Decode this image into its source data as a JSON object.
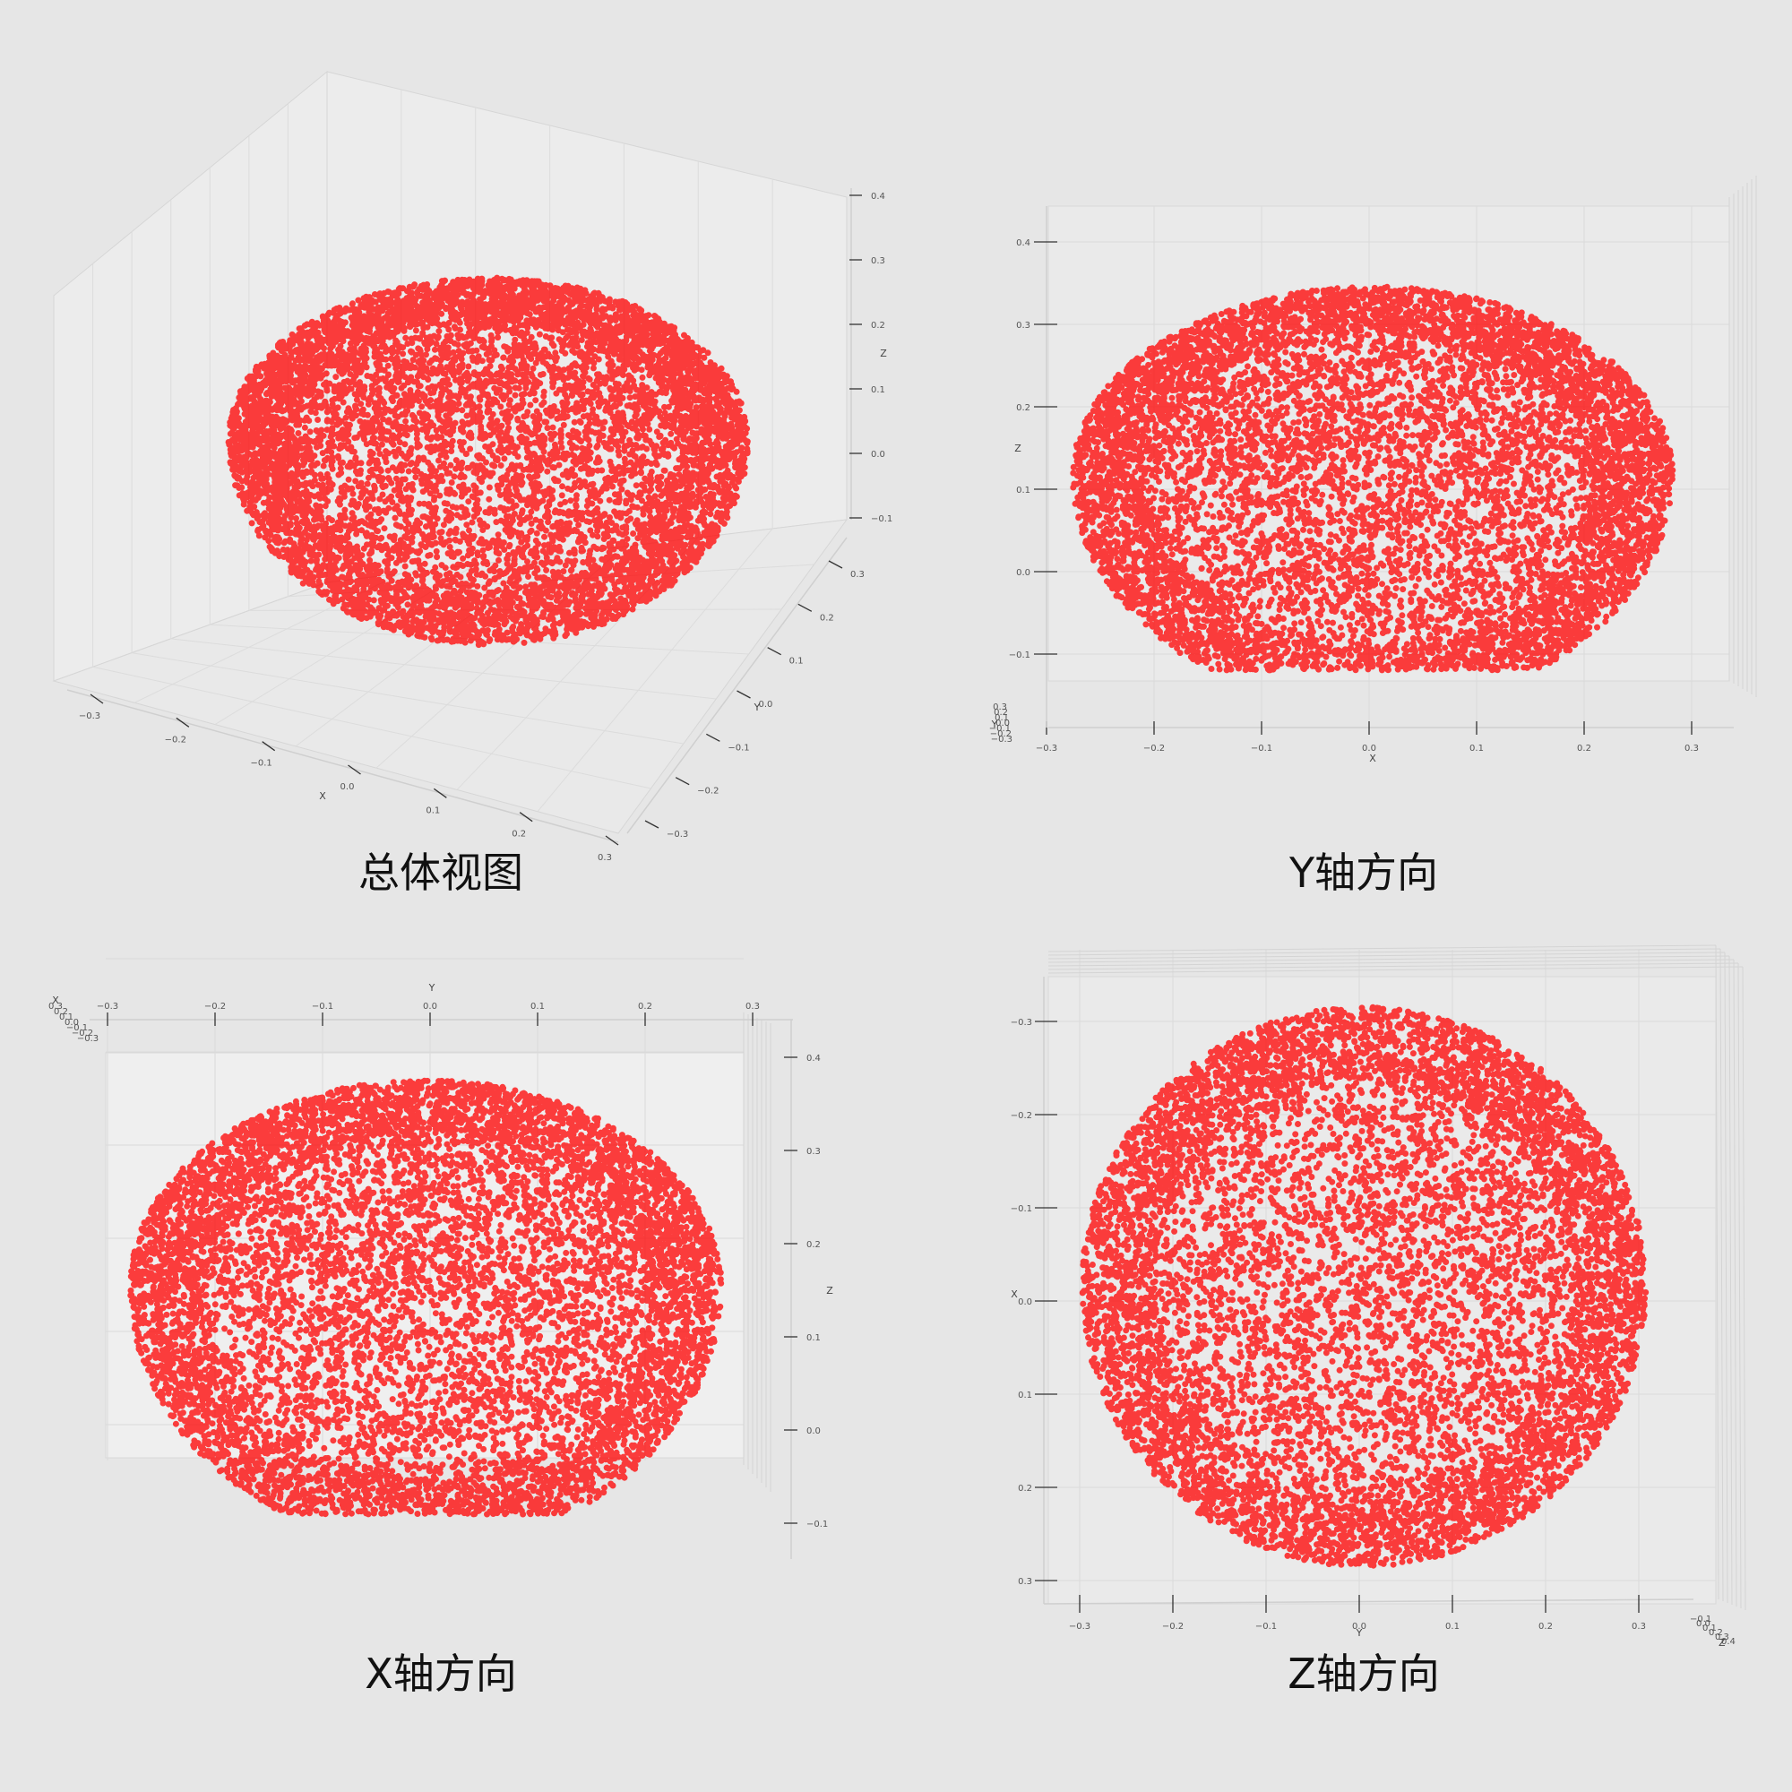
{
  "chart_data": [
    {
      "type": "scatter",
      "title": "",
      "caption": "总体视图",
      "view": "perspective",
      "marker_color": "#ff0000",
      "xlabel": "X",
      "ylabel": "Y",
      "zlabel": "Z",
      "xlim": [
        -0.33,
        0.33
      ],
      "ylim": [
        -0.33,
        0.33
      ],
      "zlim": [
        -0.12,
        0.42
      ],
      "xticks": [
        "−0.3",
        "−0.2",
        "−0.1",
        "0.0",
        "0.1",
        "0.2",
        "0.3"
      ],
      "yticks": [
        "−0.3",
        "−0.2",
        "−0.1",
        "0.0",
        "0.1",
        "0.2",
        "0.3"
      ],
      "zticks": [
        "−0.1",
        "0.0",
        "0.1",
        "0.2",
        "0.3",
        "0.4"
      ],
      "grid": true,
      "shape": "hemisphere",
      "center": [
        0,
        0,
        0
      ],
      "radius": 0.33,
      "z_range": [
        -0.13,
        0.4
      ],
      "points": 20000
    },
    {
      "type": "scatter",
      "title": "",
      "caption": "Y轴方向",
      "view": "along-y",
      "marker_color": "#ff0000",
      "xlabel": "X",
      "ylabel": "Y",
      "zlabel": "Z",
      "xticks": [
        "−0.3",
        "−0.2",
        "−0.1",
        "0.0",
        "0.1",
        "0.2",
        "0.3"
      ],
      "zticks": [
        "−0.1",
        "0.0",
        "0.1",
        "0.2",
        "0.3",
        "0.4"
      ],
      "yticks": [
        "−0.3",
        "−0.2",
        "−0.1",
        "0.0",
        "0.1",
        "0.2",
        "0.3"
      ],
      "grid": true,
      "shape": "hemisphere"
    },
    {
      "type": "scatter",
      "title": "",
      "caption": "X轴方向",
      "view": "along-x",
      "marker_color": "#ff0000",
      "xlabel": "X",
      "ylabel": "Y",
      "zlabel": "Z",
      "yticks": [
        "−0.3",
        "−0.2",
        "−0.1",
        "0.0",
        "0.1",
        "0.2",
        "0.3"
      ],
      "zticks": [
        "−0.1",
        "0.0",
        "0.1",
        "0.2",
        "0.3",
        "0.4"
      ],
      "xticks": [
        "0.3",
        "0.2",
        "0.1",
        "0.0",
        "−0.1",
        "−0.2",
        "−0.3"
      ],
      "grid": true,
      "shape": "hemisphere"
    },
    {
      "type": "scatter",
      "title": "",
      "caption": "Z轴方向",
      "view": "along-z",
      "marker_color": "#ff0000",
      "xlabel": "X",
      "ylabel": "Y",
      "zlabel": "Z",
      "yticks": [
        "−0.3",
        "−0.2",
        "−0.1",
        "0.0",
        "0.1",
        "0.2",
        "0.3"
      ],
      "xticks": [
        "−0.3",
        "−0.2",
        "−0.1",
        "0.0",
        "0.1",
        "0.2",
        "0.3"
      ],
      "zticks": [
        "−0.1",
        "0.0",
        "0.1",
        "0.2",
        "0.3",
        "0.4"
      ],
      "grid": true,
      "shape": "disk"
    }
  ]
}
